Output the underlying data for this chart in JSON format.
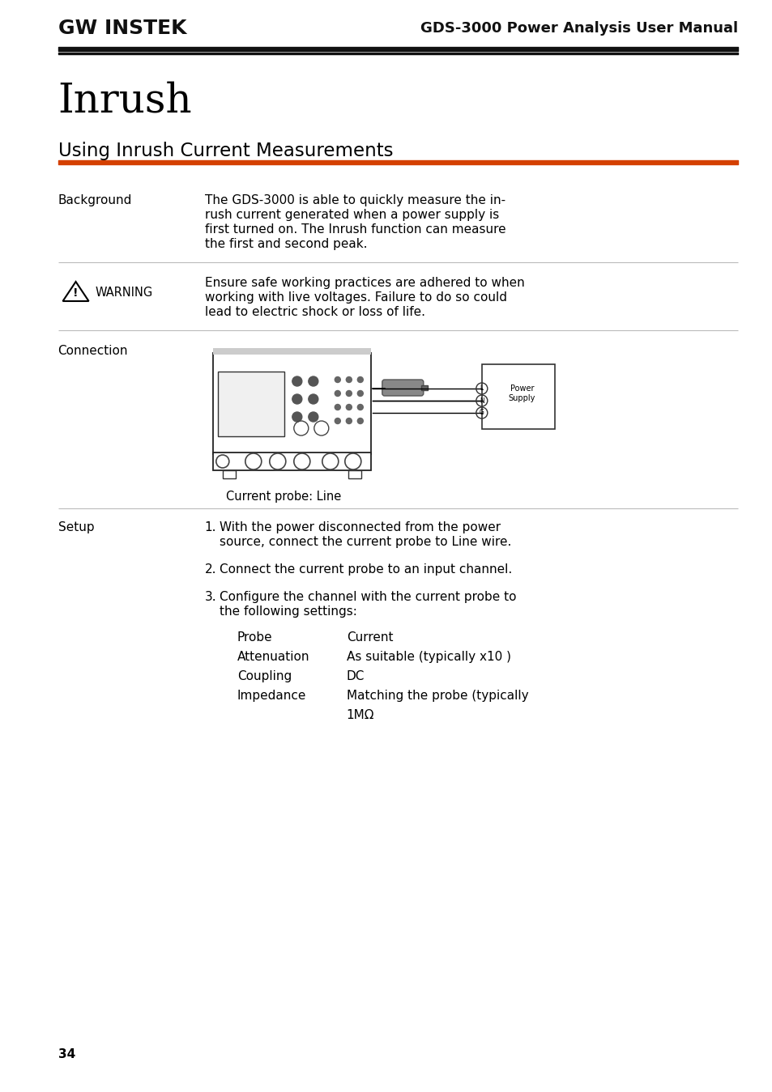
{
  "page_bg": "#ffffff",
  "header_text": "GDS-3000 Power Analysis User Manual",
  "chapter_title": "Inrush",
  "section_title": "Using Inrush Current Measurements",
  "orange_line_color": "#d44000",
  "separator_color": "#bbbbbb",
  "label1": "Background",
  "body1_lines": [
    "The GDS-3000 is able to quickly measure the in-",
    "rush current generated when a power supply is",
    "first turned on. The Inrush function can measure",
    "the first and second peak."
  ],
  "warning_label": "WARNING",
  "warning_body_lines": [
    "Ensure safe working practices are adhered to when",
    "working with live voltages. Failure to do so could",
    "lead to electric shock or loss of life."
  ],
  "label3": "Connection",
  "connection_caption": "Current probe: Line",
  "label4": "Setup",
  "setup_item1_lines": [
    "With the power disconnected from the power",
    "source, connect the current probe to Line wire."
  ],
  "setup_item2": "Connect the current probe to an input channel.",
  "setup_item3_lines": [
    "Configure the channel with the current probe to",
    "the following settings:"
  ],
  "table_rows": [
    [
      "Probe",
      "Current"
    ],
    [
      "Attenuation",
      "As suitable (typically x10 )"
    ],
    [
      "Coupling",
      "DC"
    ],
    [
      "Impedance",
      "Matching the probe (typically"
    ],
    [
      "",
      "1MΩ"
    ]
  ],
  "page_number": "34",
  "ml": 0.075,
  "mr": 0.955,
  "cl": 0.265
}
